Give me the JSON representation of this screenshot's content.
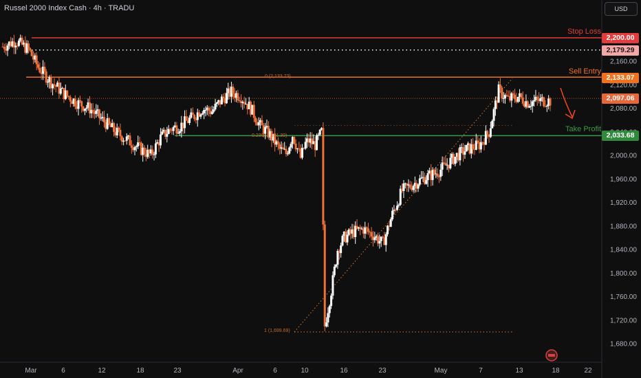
{
  "header": {
    "title": "Russel 2000 Index Cash · 4h · TRADU",
    "currency": "USD"
  },
  "levels": {
    "stop_loss": {
      "label": "Stop Loss",
      "price": 2200.0,
      "tag": "2,200.00",
      "color": "#e23c3c"
    },
    "ref": {
      "price": 2179.29,
      "tag": "2,179.29",
      "color": "#f06a6a"
    },
    "sell_entry": {
      "label": "Sell Entry",
      "price": 2133.07,
      "tag": "2,133.07",
      "color": "#f2711c"
    },
    "current": {
      "price": 2097.06,
      "tag": "2,097.06",
      "color": "#e8673a"
    },
    "take_profit": {
      "label": "Take Profit",
      "price": 2033.68,
      "tag": "2,033.68",
      "color": "#3a9a46"
    }
  },
  "fib": {
    "top": "0 (2,133.73)",
    "mid": "0.236 (2,051.30)",
    "bottom": "1 (1,699.69)"
  },
  "chart_data": {
    "type": "candlestick",
    "ylim": [
      1652,
      2230
    ],
    "y_ticks": [
      "2,200.00",
      "2,160.00",
      "2,120.00",
      "2,080.00",
      "2,040.00",
      "2,000.00",
      "1,960.00",
      "1,920.00",
      "1,880.00",
      "1,840.00",
      "1,800.00",
      "1,760.00",
      "1,720.00",
      "1,680.00"
    ],
    "x_ticks": [
      "Mar",
      "6",
      "12",
      "18",
      "23",
      "Apr",
      "6",
      "10",
      "16",
      "23",
      "May",
      "7",
      "13",
      "18",
      "22"
    ],
    "close_path": [
      [
        0,
        2185
      ],
      [
        8,
        2195
      ],
      [
        16,
        2180
      ],
      [
        22,
        2150
      ],
      [
        30,
        2125
      ],
      [
        38,
        2105
      ],
      [
        46,
        2090
      ],
      [
        54,
        2080
      ],
      [
        62,
        2060
      ],
      [
        70,
        2040
      ],
      [
        78,
        2025
      ],
      [
        86,
        2010
      ],
      [
        92,
        2000
      ],
      [
        98,
        2030
      ],
      [
        104,
        2045
      ],
      [
        110,
        2050
      ],
      [
        118,
        2065
      ],
      [
        124,
        2080
      ],
      [
        130,
        2075
      ],
      [
        136,
        2095
      ],
      [
        142,
        2108
      ],
      [
        148,
        2100
      ],
      [
        154,
        2080
      ],
      [
        160,
        2050
      ],
      [
        166,
        2035
      ],
      [
        172,
        2010
      ],
      [
        176,
        2003
      ],
      [
        180,
        2035
      ],
      [
        185,
        1996
      ],
      [
        188,
        2020
      ],
      [
        190,
        2025
      ],
      [
        194,
        2018
      ],
      [
        198,
        2040
      ],
      [
        200,
        1710
      ],
      [
        204,
        1770
      ],
      [
        208,
        1840
      ],
      [
        212,
        1860
      ],
      [
        218,
        1870
      ],
      [
        224,
        1875
      ],
      [
        230,
        1865
      ],
      [
        236,
        1850
      ],
      [
        242,
        1900
      ],
      [
        248,
        1940
      ],
      [
        254,
        1950
      ],
      [
        262,
        1962
      ],
      [
        270,
        1972
      ],
      [
        276,
        1985
      ],
      [
        282,
        2000
      ],
      [
        288,
        2010
      ],
      [
        296,
        2018
      ],
      [
        302,
        2040
      ],
      [
        308,
        2110
      ],
      [
        314,
        2095
      ],
      [
        320,
        2100
      ],
      [
        326,
        2090
      ],
      [
        332,
        2093
      ]
    ],
    "x_range": [
      0,
      340
    ]
  }
}
